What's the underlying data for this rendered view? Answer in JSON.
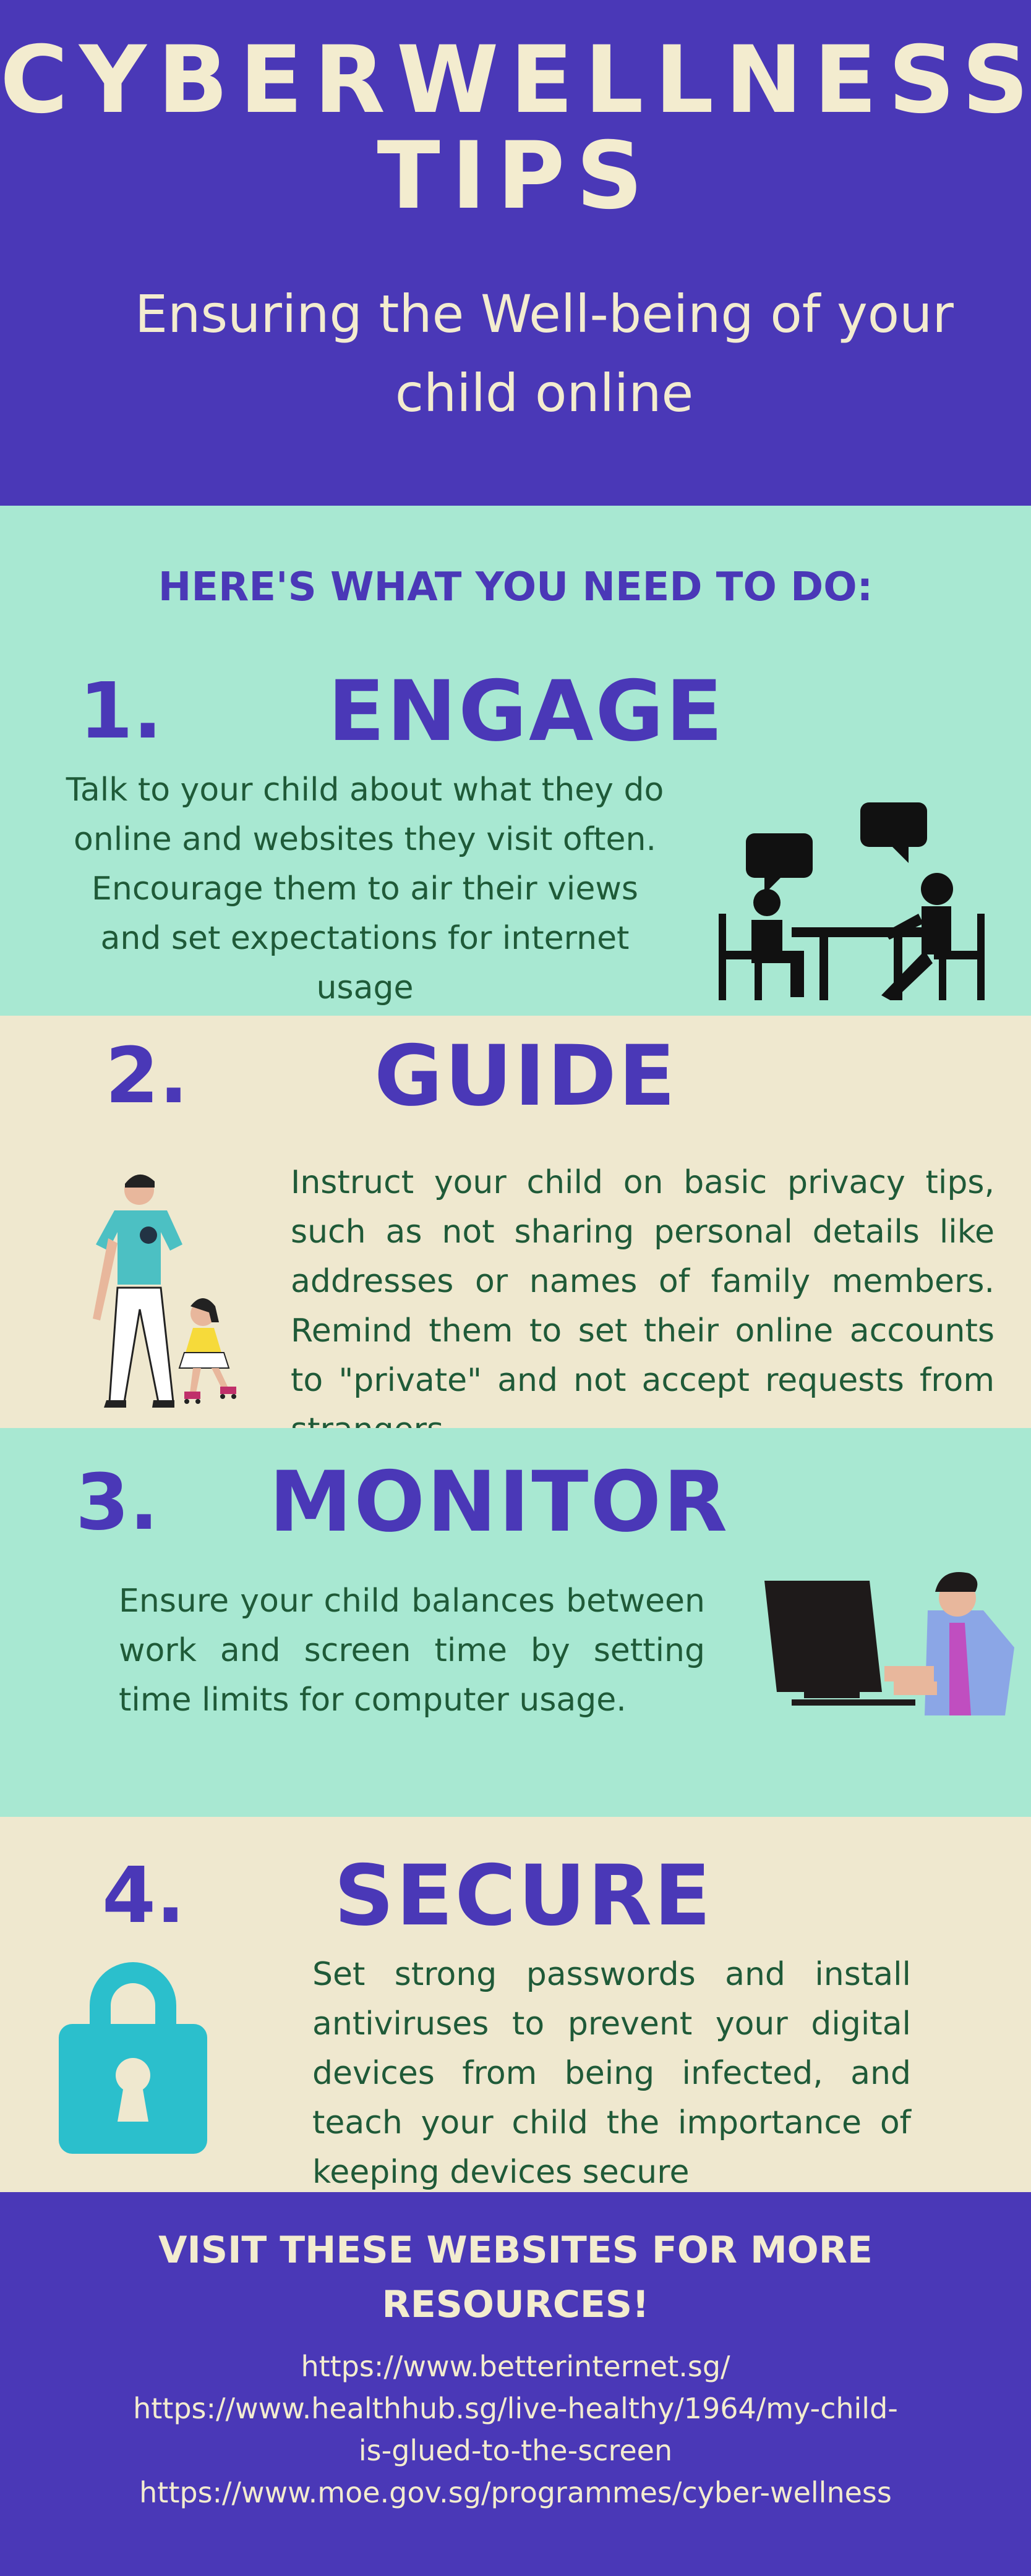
{
  "header": {
    "title_line1": "CYBERWELLNESS",
    "title_line2": "TIPS",
    "subtitle": "Ensuring the Well-being of your child online"
  },
  "intro": {
    "heading": "HERE'S WHAT YOU NEED TO DO:"
  },
  "steps": [
    {
      "number": "1.",
      "title": "ENGAGE",
      "text": "Talk to your child about what they do online and websites they visit often. Encourage them to air their views and set expectations for internet usage",
      "icon": "two-people-talking-at-table-icon"
    },
    {
      "number": "2.",
      "title": "GUIDE",
      "text": "Instruct your child on basic privacy tips, such as not sharing personal details like addresses or names of family members. Remind them to set their online accounts to \"private\" and not accept requests from strangers",
      "icon": "parent-and-child-walking-illustration"
    },
    {
      "number": "3.",
      "title": "MONITOR",
      "text": "Ensure your child balances between work and screen time by setting time limits for computer usage.",
      "icon": "child-using-computer-illustration"
    },
    {
      "number": "4.",
      "title": "SECURE",
      "text": "Set strong passwords and install antiviruses to prevent your digital devices from being infected, and teach your child the importance of keeping devices secure",
      "icon": "padlock-icon"
    }
  ],
  "resources": {
    "heading": "VISIT THESE WEBSITES FOR MORE RESOURCES!",
    "links": [
      "https://www.betterinternet.sg/",
      "https://www.healthhub.sg/live-healthy/1964/my-child-",
      "is-glued-to-the-screen",
      "https://www.moe.gov.sg/programmes/cyber-wellness"
    ]
  },
  "colors": {
    "purple": "#4a38b7",
    "mint": "#a8e8d2",
    "cream": "#efe8cf",
    "text_green": "#1f5a38",
    "title_cream": "#f3eccf",
    "lock_teal": "#2bbfcc"
  }
}
